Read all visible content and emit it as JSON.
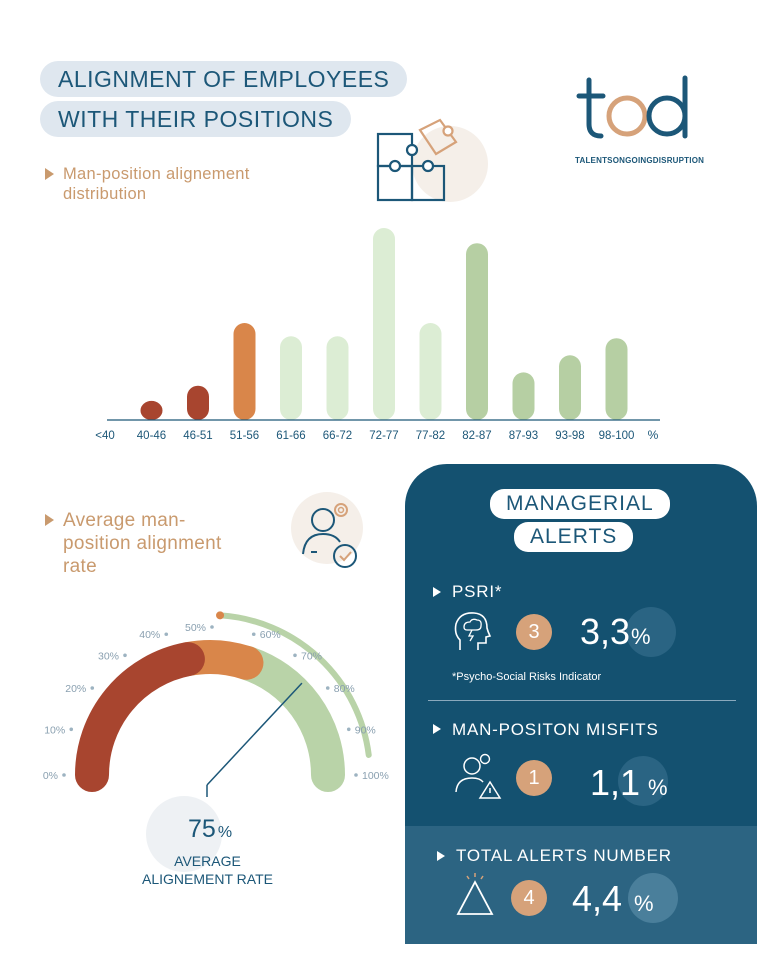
{
  "header": {
    "title_line1": "ALIGNMENT OF EMPLOYEES",
    "title_line2": "WITH THEIR POSITIONS",
    "logo_text": "tod",
    "logo_tagline": "TALENTSONGOINGDISRUPTION"
  },
  "distribution": {
    "label_line1": "Man-position alignement",
    "label_line2": "distribution"
  },
  "chart_data": [
    {
      "type": "bar",
      "categories": [
        "<40",
        "40-46",
        "46-51",
        "51-56",
        "61-66",
        "66-72",
        "72-77",
        "77-82",
        "82-87",
        "87-93",
        "93-98",
        "98-100"
      ],
      "values": [
        0,
        9,
        17,
        50,
        43,
        43,
        100,
        50,
        92,
        24,
        33,
        42
      ],
      "xlabel": "%",
      "colors": [
        "#a8452f",
        "#a8452f",
        "#a8452f",
        "#d9864a",
        "#dcedd4",
        "#dcedd4",
        "#dcedd4",
        "#dcedd4",
        "#b6cfa3",
        "#b6cfa3",
        "#b6cfa3",
        "#b6cfa3"
      ],
      "ylim": [
        0,
        100
      ]
    },
    {
      "type": "gauge",
      "value": 75,
      "min": 0,
      "max": 100,
      "ticks": [
        "0%",
        "10%",
        "20%",
        "30%",
        "40%",
        "50%",
        "60%",
        "70%",
        "80%",
        "90%",
        "100%"
      ],
      "bands": [
        {
          "from": 0,
          "to": 44,
          "color": "#a8452f"
        },
        {
          "from": 44,
          "to": 60,
          "color": "#d9864a"
        },
        {
          "from": 60,
          "to": 100,
          "color": "#b9d3a8"
        }
      ],
      "outer_arc": {
        "from": 52,
        "to": 96,
        "color": "#b9d3a8"
      }
    }
  ],
  "average": {
    "label_line1": "Average man-",
    "label_line2": "position alignment",
    "label_line3": "rate",
    "value": "75",
    "unit": "%",
    "caption_line1": "AVERAGE",
    "caption_line2": "ALIGNEMENT RATE"
  },
  "alerts": {
    "title_line1": "MANAGERIAL",
    "title_line2": "ALERTS",
    "psri": {
      "title": "PSRI*",
      "count": "3",
      "value": "3,3",
      "unit": "%",
      "footnote": "*Psycho-Social Risks Indicator",
      "icon": "stormy-head-icon"
    },
    "misfits": {
      "title": "MAN-POSITON MISFITS",
      "count": "1",
      "value": "1,1",
      "unit": "%",
      "icon": "person-warning-icon"
    },
    "total": {
      "title": "TOTAL ALERTS NUMBER",
      "count": "4",
      "value": "4,4",
      "unit": "%",
      "icon": "warning-triangle-icon"
    }
  },
  "colors": {
    "navy": "#145170",
    "accent_orange": "#d6a27a",
    "brick": "#a8452f",
    "green": "#b6cfa3"
  }
}
